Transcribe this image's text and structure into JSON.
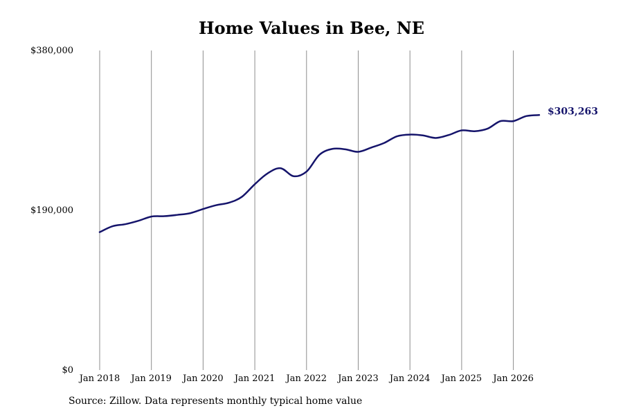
{
  "chart_data": {
    "type": "line",
    "title": "Home Values in Bee, NE",
    "xlabel": "",
    "ylabel": "",
    "ylim": [
      0,
      380000
    ],
    "y_ticks": [
      {
        "value": 0,
        "label": "$0"
      },
      {
        "value": 190000,
        "label": "$190,000"
      },
      {
        "value": 380000,
        "label": "$380,000"
      }
    ],
    "x_ticks": [
      {
        "value": "2018-01",
        "label": "Jan 2018"
      },
      {
        "value": "2019-01",
        "label": "Jan 2019"
      },
      {
        "value": "2020-01",
        "label": "Jan 2020"
      },
      {
        "value": "2021-01",
        "label": "Jan 2021"
      },
      {
        "value": "2022-01",
        "label": "Jan 2022"
      },
      {
        "value": "2023-01",
        "label": "Jan 2023"
      },
      {
        "value": "2024-01",
        "label": "Jan 2024"
      },
      {
        "value": "2025-01",
        "label": "Jan 2025"
      },
      {
        "value": "2026-01",
        "label": "Jan 2026"
      }
    ],
    "grid": "vertical",
    "series": [
      {
        "color": "#15146b",
        "points": [
          {
            "x": "2018-01",
            "y": 164000
          },
          {
            "x": "2018-04",
            "y": 171000
          },
          {
            "x": "2018-07",
            "y": 173500
          },
          {
            "x": "2018-10",
            "y": 177500
          },
          {
            "x": "2019-01",
            "y": 182500
          },
          {
            "x": "2019-04",
            "y": 183000
          },
          {
            "x": "2019-07",
            "y": 184500
          },
          {
            "x": "2019-10",
            "y": 186500
          },
          {
            "x": "2020-01",
            "y": 191500
          },
          {
            "x": "2020-04",
            "y": 196000
          },
          {
            "x": "2020-07",
            "y": 199000
          },
          {
            "x": "2020-10",
            "y": 206000
          },
          {
            "x": "2021-01",
            "y": 221000
          },
          {
            "x": "2021-04",
            "y": 234000
          },
          {
            "x": "2021-07",
            "y": 240000
          },
          {
            "x": "2021-10",
            "y": 230500
          },
          {
            "x": "2022-01",
            "y": 236000
          },
          {
            "x": "2022-04",
            "y": 256000
          },
          {
            "x": "2022-07",
            "y": 263000
          },
          {
            "x": "2022-10",
            "y": 262500
          },
          {
            "x": "2023-01",
            "y": 259500
          },
          {
            "x": "2023-04",
            "y": 264500
          },
          {
            "x": "2023-07",
            "y": 270000
          },
          {
            "x": "2023-10",
            "y": 278000
          },
          {
            "x": "2024-01",
            "y": 280000
          },
          {
            "x": "2024-04",
            "y": 279000
          },
          {
            "x": "2024-07",
            "y": 276000
          },
          {
            "x": "2024-10",
            "y": 279500
          },
          {
            "x": "2025-01",
            "y": 285000
          },
          {
            "x": "2025-04",
            "y": 284000
          },
          {
            "x": "2025-07",
            "y": 287000
          },
          {
            "x": "2025-10",
            "y": 296000
          },
          {
            "x": "2026-01",
            "y": 296000
          },
          {
            "x": "2026-04",
            "y": 302000
          },
          {
            "x": "2026-07",
            "y": 303263
          }
        ]
      }
    ],
    "end_label": "$303,263",
    "source": "Source: Zillow. Data represents monthly typical home value"
  }
}
